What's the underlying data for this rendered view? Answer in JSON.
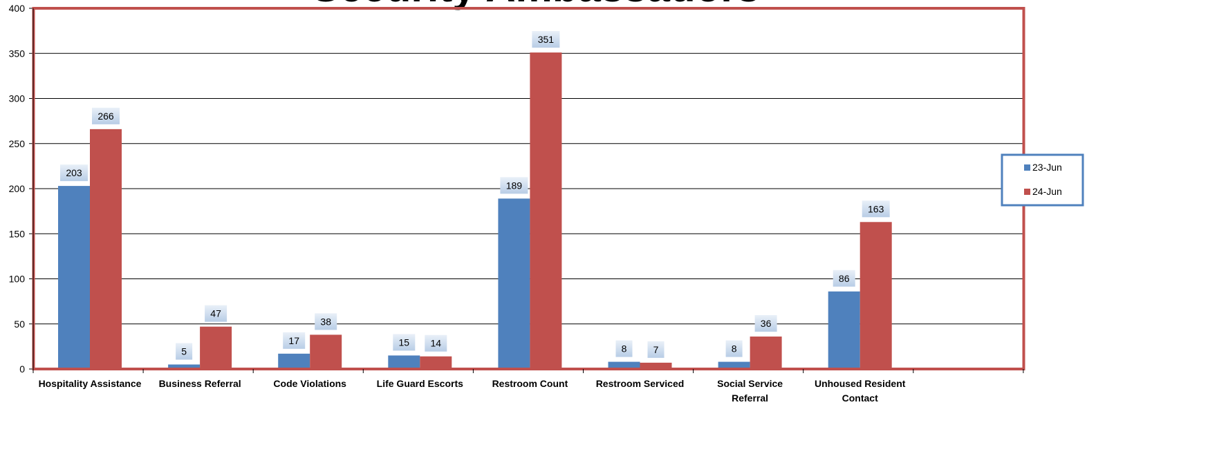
{
  "chart_data": {
    "type": "bar",
    "title": "Security Ambassadors",
    "categories": [
      "Hospitality Assistance",
      "Business Referral",
      "Code Violations",
      "Life Guard Escorts",
      "Restroom Count",
      "Restroom Serviced",
      "Social Service Referral",
      "Unhoused Resident Contact"
    ],
    "series": [
      {
        "name": "23-Jun",
        "color": "#4F81BD",
        "values": [
          203,
          5,
          17,
          15,
          189,
          8,
          8,
          86
        ]
      },
      {
        "name": "24-Jun",
        "color": "#C0504D",
        "values": [
          266,
          47,
          38,
          14,
          351,
          7,
          36,
          163
        ]
      }
    ],
    "xlabel": "",
    "ylabel": "",
    "ylim": [
      0,
      400
    ],
    "yticks": [
      0,
      50,
      100,
      150,
      200,
      250,
      300,
      350,
      400
    ],
    "grid": true,
    "legend_position": "right",
    "data_labels": true,
    "plot_border_color": "#C0504D",
    "legend_border_color": "#4F81BD"
  }
}
